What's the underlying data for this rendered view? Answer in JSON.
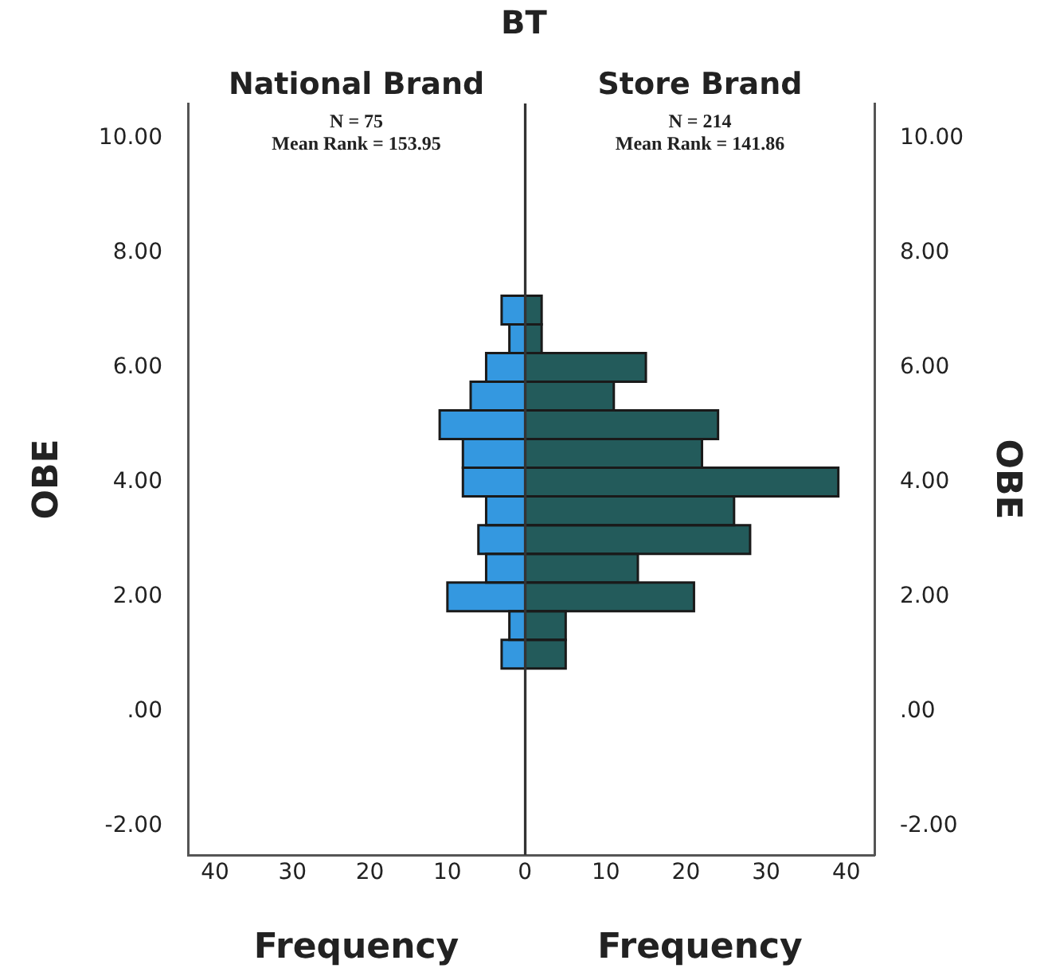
{
  "chart_data": [
    {
      "type": "histogram",
      "orientation": "horizontal",
      "title": "National Brand",
      "xlabel": "Frequency",
      "ylabel": "OBE",
      "annotations": [
        "BT",
        "N = 75",
        "Mean Rank = 153.95"
      ],
      "bins": [
        0.75,
        1.25,
        1.75,
        2.25,
        2.75,
        3.25,
        3.75,
        4.25,
        4.75,
        5.25,
        5.75,
        6.25,
        6.75,
        7.25
      ],
      "values": [
        3,
        2,
        10,
        5,
        6,
        5,
        8,
        8,
        11,
        7,
        5,
        2,
        3
      ],
      "color": "#3498e0",
      "xlim": [
        43.5,
        0
      ],
      "xticks": [
        40,
        30,
        20,
        10,
        0
      ],
      "ylim": [
        -2.5,
        10.6
      ],
      "yticks": [
        {
          "value": -2,
          "label": "-2.00"
        },
        {
          "value": 0,
          "label": ".00"
        },
        {
          "value": 2,
          "label": "2.00"
        },
        {
          "value": 4,
          "label": "4.00"
        },
        {
          "value": 6,
          "label": "6.00"
        },
        {
          "value": 8,
          "label": "8.00"
        },
        {
          "value": 10,
          "label": "10.00"
        }
      ],
      "grid": false,
      "legend": false
    },
    {
      "type": "histogram",
      "orientation": "horizontal",
      "title": "Store Brand",
      "xlabel": "Frequency",
      "ylabel": "OBE",
      "annotations": [
        "N = 214",
        "Mean Rank = 141.86"
      ],
      "bins": [
        0.75,
        1.25,
        1.75,
        2.25,
        2.75,
        3.25,
        3.75,
        4.25,
        4.75,
        5.25,
        5.75,
        6.25,
        6.75,
        7.25
      ],
      "values": [
        5,
        5,
        21,
        14,
        28,
        26,
        39,
        22,
        24,
        11,
        15,
        2,
        2
      ],
      "color": "#235b5b",
      "xlim": [
        0,
        43.5
      ],
      "xticks": [
        {
          "value": 0,
          "label": null
        },
        10,
        20,
        30,
        40
      ],
      "ylim": [
        -2.5,
        10.6
      ],
      "yticks": [
        {
          "value": -2,
          "label": "-2.00"
        },
        {
          "value": 0,
          "label": ".00"
        },
        {
          "value": 2,
          "label": "2.00"
        },
        {
          "value": 4,
          "label": "4.00"
        },
        {
          "value": 6,
          "label": "6.00"
        },
        {
          "value": 8,
          "label": "8.00"
        },
        {
          "value": 10,
          "label": "10.00"
        }
      ],
      "grid": false,
      "legend": false
    }
  ]
}
